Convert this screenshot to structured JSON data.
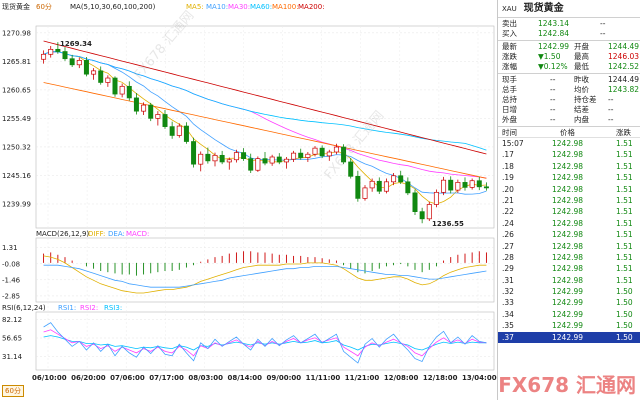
{
  "chart": {
    "title": "现货黄金",
    "period": "60分",
    "ma_label": "MA(5,10,30,60,100,200)",
    "ma_names": [
      "MA5:",
      "MA10:",
      "MA30:",
      "MA60:",
      "MA100:",
      "MA200:"
    ],
    "price_ticks": [
      "1270.98",
      "1265.81",
      "1260.65",
      "1255.49",
      "1250.32",
      "1245.16",
      "1239.99"
    ],
    "high_marker": "1269.34",
    "low_marker": "1236.55",
    "macd_label": "MACD(26,12,9)",
    "macd_names": [
      "DIFF:",
      "DEA:",
      "MACD:"
    ],
    "macd_ticks": [
      "1.31",
      "-0.08",
      "-1.46",
      "-2.85"
    ],
    "rsi_label": "RSI(6,12,24)",
    "rsi_names": [
      "RSI1:",
      "RSI2:",
      "RSI3:"
    ],
    "rsi_ticks": [
      "82.12",
      "56.65",
      "31.14"
    ],
    "dates": [
      "06/10:00",
      "06/20:00",
      "07/06:00",
      "07/17:00",
      "08/03:00",
      "08/14:00",
      "09/00:00",
      "11/11:00",
      "11/21:00",
      "12/08:00",
      "12/18:00",
      "13/04:00"
    ],
    "colors": {
      "ma5": "#e0b000",
      "ma10": "#40a0ff",
      "ma30": "#ff40ff",
      "ma60": "#00c0ff",
      "ma100": "#ff6a00",
      "ma200": "#cc0000",
      "up": "#cc0000",
      "down": "#118811"
    }
  },
  "chart_data": {
    "type": "candlestick",
    "price_range": [
      1236.0,
      1271.5
    ],
    "candles": [
      [
        1266.2,
        1267.8,
        1265.4,
        1267.1
      ],
      [
        1267.1,
        1268.6,
        1266.5,
        1268.0
      ],
      [
        1268.0,
        1269.3,
        1267.2,
        1267.6
      ],
      [
        1267.6,
        1268.4,
        1265.9,
        1266.3
      ],
      [
        1266.3,
        1267.0,
        1264.8,
        1265.2
      ],
      [
        1265.2,
        1266.5,
        1264.6,
        1266.0
      ],
      [
        1266.0,
        1266.6,
        1263.1,
        1263.5
      ],
      [
        1263.5,
        1264.6,
        1262.5,
        1264.1
      ],
      [
        1264.1,
        1264.9,
        1261.6,
        1262.0
      ],
      [
        1262.0,
        1263.3,
        1261.2,
        1262.8
      ],
      [
        1262.8,
        1263.1,
        1259.4,
        1259.9
      ],
      [
        1259.9,
        1261.8,
        1259.3,
        1261.3
      ],
      [
        1261.3,
        1262.2,
        1258.7,
        1259.2
      ],
      [
        1259.2,
        1260.1,
        1256.2,
        1256.8
      ],
      [
        1256.8,
        1258.4,
        1256.1,
        1257.9
      ],
      [
        1257.9,
        1258.3,
        1255.0,
        1255.5
      ],
      [
        1255.5,
        1256.8,
        1254.2,
        1256.2
      ],
      [
        1256.2,
        1257.0,
        1253.6,
        1254.0
      ],
      [
        1254.0,
        1254.9,
        1251.8,
        1252.4
      ],
      [
        1252.4,
        1254.6,
        1252.0,
        1254.1
      ],
      [
        1254.1,
        1254.8,
        1250.9,
        1251.3
      ],
      [
        1251.3,
        1252.0,
        1246.6,
        1247.2
      ],
      [
        1247.2,
        1249.5,
        1245.9,
        1249.0
      ],
      [
        1249.0,
        1250.2,
        1247.3,
        1247.8
      ],
      [
        1247.8,
        1249.3,
        1246.8,
        1248.8
      ],
      [
        1248.8,
        1249.6,
        1247.2,
        1247.6
      ],
      [
        1247.6,
        1248.4,
        1246.2,
        1248.0
      ],
      [
        1248.0,
        1249.8,
        1247.5,
        1249.3
      ],
      [
        1249.3,
        1250.1,
        1247.8,
        1248.2
      ],
      [
        1248.2,
        1249.1,
        1245.6,
        1246.1
      ],
      [
        1246.1,
        1248.6,
        1245.8,
        1248.2
      ],
      [
        1248.2,
        1249.4,
        1247.0,
        1247.4
      ],
      [
        1247.4,
        1248.9,
        1246.9,
        1248.5
      ],
      [
        1248.5,
        1249.2,
        1247.2,
        1247.6
      ],
      [
        1247.6,
        1248.5,
        1246.4,
        1248.1
      ],
      [
        1248.1,
        1249.6,
        1247.6,
        1249.2
      ],
      [
        1249.2,
        1250.0,
        1248.0,
        1248.4
      ],
      [
        1248.4,
        1249.4,
        1247.6,
        1249.0
      ],
      [
        1249.0,
        1250.5,
        1248.6,
        1250.1
      ],
      [
        1250.1,
        1250.6,
        1248.3,
        1248.7
      ],
      [
        1248.7,
        1249.8,
        1247.8,
        1249.4
      ],
      [
        1249.4,
        1250.9,
        1249.0,
        1250.3
      ],
      [
        1250.3,
        1250.8,
        1247.2,
        1247.6
      ],
      [
        1247.6,
        1248.3,
        1244.6,
        1245.0
      ],
      [
        1245.0,
        1246.0,
        1240.4,
        1241.0
      ],
      [
        1241.0,
        1243.4,
        1240.6,
        1242.9
      ],
      [
        1242.9,
        1244.6,
        1242.2,
        1244.1
      ],
      [
        1244.1,
        1244.8,
        1241.8,
        1242.3
      ],
      [
        1242.3,
        1244.6,
        1241.9,
        1244.0
      ],
      [
        1244.0,
        1245.6,
        1243.4,
        1245.1
      ],
      [
        1245.1,
        1246.0,
        1243.6,
        1244.0
      ],
      [
        1244.0,
        1244.8,
        1241.6,
        1242.0
      ],
      [
        1242.0,
        1242.6,
        1238.0,
        1238.6
      ],
      [
        1238.6,
        1239.3,
        1236.5,
        1237.3
      ],
      [
        1237.3,
        1240.4,
        1236.9,
        1239.9
      ],
      [
        1239.9,
        1242.6,
        1239.4,
        1242.1
      ],
      [
        1242.1,
        1244.9,
        1241.6,
        1244.3
      ],
      [
        1244.3,
        1245.0,
        1241.9,
        1242.5
      ],
      [
        1242.5,
        1244.4,
        1242.0,
        1243.9
      ],
      [
        1243.9,
        1244.8,
        1242.4,
        1243.0
      ],
      [
        1243.0,
        1244.6,
        1242.6,
        1244.2
      ],
      [
        1244.2,
        1244.9,
        1242.5,
        1243.1
      ],
      [
        1243.1,
        1243.9,
        1242.4,
        1242.9
      ]
    ],
    "macd_range": [
      -3.2,
      1.8
    ],
    "macd_hist": [
      0.8,
      0.9,
      0.7,
      0.5,
      0.2,
      0.0,
      -0.3,
      -0.5,
      -0.7,
      -0.8,
      -0.9,
      -1.0,
      -1.0,
      -1.1,
      -1.0,
      -0.9,
      -0.8,
      -0.7,
      -0.7,
      -0.6,
      -0.4,
      -0.2,
      0.1,
      0.3,
      0.5,
      0.6,
      0.8,
      0.9,
      1.0,
      1.0,
      0.9,
      0.9,
      0.8,
      0.7,
      0.7,
      0.6,
      0.6,
      0.5,
      0.5,
      0.4,
      0.3,
      0.2,
      -0.2,
      -0.5,
      -0.8,
      -0.9,
      -0.7,
      -0.5,
      -0.3,
      -0.2,
      -0.1,
      -0.3,
      -0.6,
      -0.8,
      -0.6,
      -0.3,
      0.2,
      0.5,
      0.7,
      0.8,
      0.9,
      1.0,
      0.9
    ],
    "macd_diff": [
      0.6,
      0.5,
      0.3,
      0.0,
      -0.4,
      -0.8,
      -1.2,
      -1.5,
      -1.8,
      -2.0,
      -2.2,
      -2.4,
      -2.5,
      -2.6,
      -2.6,
      -2.5,
      -2.4,
      -2.3,
      -2.3,
      -2.2,
      -2.1,
      -1.9,
      -1.6,
      -1.4,
      -1.2,
      -1.0,
      -0.8,
      -0.6,
      -0.4,
      -0.3,
      -0.2,
      -0.2,
      -0.2,
      -0.2,
      -0.1,
      -0.1,
      -0.1,
      0.0,
      0.0,
      0.0,
      -0.1,
      -0.2,
      -0.5,
      -0.9,
      -1.3,
      -1.5,
      -1.5,
      -1.4,
      -1.3,
      -1.2,
      -1.2,
      -1.4,
      -1.7,
      -1.9,
      -1.8,
      -1.5,
      -1.1,
      -0.8,
      -0.6,
      -0.4,
      -0.3,
      -0.2,
      -0.2
    ],
    "macd_dea": [
      -0.2,
      -0.2,
      -0.2,
      -0.3,
      -0.4,
      -0.5,
      -0.7,
      -0.9,
      -1.1,
      -1.3,
      -1.5,
      -1.6,
      -1.8,
      -1.9,
      -2.0,
      -2.1,
      -2.1,
      -2.1,
      -2.1,
      -2.1,
      -2.0,
      -1.9,
      -1.8,
      -1.7,
      -1.6,
      -1.5,
      -1.3,
      -1.2,
      -1.1,
      -1.0,
      -0.9,
      -0.8,
      -0.7,
      -0.6,
      -0.5,
      -0.5,
      -0.4,
      -0.4,
      -0.3,
      -0.3,
      -0.3,
      -0.3,
      -0.4,
      -0.5,
      -0.6,
      -0.7,
      -0.8,
      -0.9,
      -1.0,
      -1.0,
      -1.1,
      -1.1,
      -1.2,
      -1.3,
      -1.4,
      -1.4,
      -1.3,
      -1.2,
      -1.1,
      -1.0,
      -0.9,
      -0.8,
      -0.7
    ],
    "rsi_range": [
      15,
      90
    ],
    "rsi1": [
      72,
      78,
      65,
      55,
      45,
      52,
      40,
      50,
      38,
      48,
      32,
      45,
      36,
      30,
      44,
      35,
      46,
      34,
      32,
      48,
      36,
      25,
      50,
      42,
      55,
      45,
      52,
      58,
      48,
      40,
      55,
      45,
      56,
      46,
      54,
      60,
      50,
      56,
      62,
      50,
      56,
      62,
      38,
      30,
      22,
      48,
      56,
      44,
      55,
      62,
      50,
      40,
      28,
      24,
      45,
      58,
      66,
      50,
      58,
      48,
      60,
      52,
      50
    ],
    "rsi2": [
      65,
      68,
      62,
      56,
      50,
      52,
      45,
      48,
      42,
      46,
      38,
      44,
      40,
      36,
      42,
      38,
      44,
      38,
      36,
      45,
      40,
      32,
      46,
      42,
      50,
      46,
      50,
      54,
      48,
      44,
      52,
      46,
      52,
      47,
      52,
      56,
      50,
      54,
      57,
      51,
      54,
      57,
      44,
      38,
      32,
      44,
      50,
      46,
      51,
      55,
      50,
      45,
      36,
      32,
      42,
      51,
      57,
      50,
      54,
      49,
      55,
      51,
      50
    ],
    "rsi3": [
      58,
      60,
      58,
      55,
      52,
      52,
      49,
      49,
      47,
      48,
      45,
      46,
      44,
      42,
      44,
      43,
      45,
      43,
      42,
      46,
      44,
      40,
      46,
      45,
      49,
      47,
      49,
      51,
      49,
      47,
      50,
      48,
      50,
      48,
      50,
      52,
      50,
      51,
      53,
      50,
      51,
      53,
      47,
      44,
      40,
      45,
      48,
      47,
      49,
      51,
      49,
      47,
      42,
      40,
      44,
      48,
      51,
      49,
      51,
      49,
      51,
      50,
      50
    ]
  },
  "quote": {
    "code": "XAU",
    "name": "现货黄金",
    "sell_label": "卖出",
    "sell": "1243.14",
    "sell_extra": "--",
    "buy_label": "买入",
    "buy": "1242.84",
    "buy_extra": "--",
    "latest_label": "最新",
    "latest": "1242.99",
    "open_label": "开盘",
    "open": "1244.49",
    "change_label": "涨跌",
    "change": "▼1.50",
    "high_label": "最高",
    "high": "1246.03",
    "pct_label": "涨幅",
    "pct": "▼0.12%",
    "low_label": "最低",
    "low": "1242.52",
    "cur_vol_label": "现手",
    "cur_vol": "--",
    "prev_close_label": "昨收",
    "prev_close": "1244.49",
    "total_vol_label": "总手",
    "total_vol": "--",
    "avg_label": "均价",
    "avg": "1243.82",
    "total_hold_label": "总持",
    "total_hold": "--",
    "hold_chg_label": "持仓差",
    "hold_chg": "--",
    "daily_inc_label": "日增",
    "daily_inc": "--",
    "settle_diff_label": "结差",
    "settle_diff": "--",
    "outer_label": "外盘",
    "outer": "--",
    "inner_label": "内盘",
    "inner": "--"
  },
  "ticks": {
    "headers": [
      "时间",
      "价格",
      "涨跌"
    ],
    "rows": [
      [
        "15:07",
        "1242.98",
        "1.51"
      ],
      [
        ".17",
        "1242.98",
        "1.51"
      ],
      [
        ".18",
        "1242.98",
        "1.51"
      ],
      [
        ".19",
        "1242.98",
        "1.51"
      ],
      [
        ".20",
        "1242.98",
        "1.51"
      ],
      [
        ".21",
        "1242.98",
        "1.51"
      ],
      [
        ".22",
        "1242.98",
        "1.51"
      ],
      [
        ".24",
        "1242.98",
        "1.51"
      ],
      [
        ".26",
        "1242.98",
        "1.51"
      ],
      [
        ".27",
        "1242.98",
        "1.51"
      ],
      [
        ".28",
        "1242.98",
        "1.51"
      ],
      [
        ".29",
        "1242.98",
        "1.51"
      ],
      [
        ".31",
        "1242.98",
        "1.51"
      ],
      [
        ".32",
        "1242.99",
        "1.50"
      ],
      [
        ".33",
        "1242.99",
        "1.50"
      ],
      [
        ".34",
        "1242.99",
        "1.50"
      ],
      [
        ".35",
        "1242.99",
        "1.50"
      ],
      [
        ".37",
        "1242.99",
        "1.50"
      ]
    ],
    "selected_row": 17
  },
  "watermark": "FX678 汇通网"
}
